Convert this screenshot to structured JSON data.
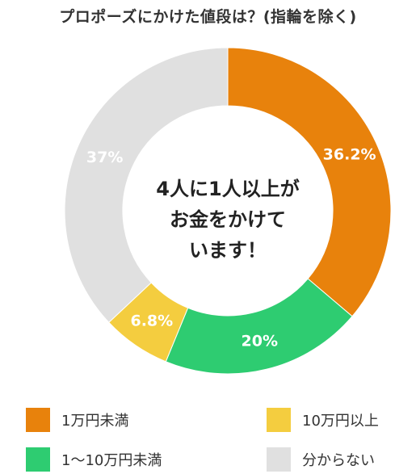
{
  "title": "プロポーズにかけた値段は？(指輪を除く)",
  "center_text": [
    "4人に1人以上が",
    "お金をかけて",
    "います！"
  ],
  "chart_data": {
    "type": "pie",
    "title": "プロポーズにかけた値段は？(指輪を除く)",
    "donut": true,
    "slices": [
      {
        "label": "1万円未満",
        "value": 36.2,
        "display": "36.2%",
        "color": "#e8820c"
      },
      {
        "label": "1～10万円未満",
        "value": 20,
        "display": "20%",
        "color": "#2ecc71"
      },
      {
        "label": "10万円以上",
        "value": 6.8,
        "display": "6.8%",
        "color": "#f4cd3f"
      },
      {
        "label": "分からない",
        "value": 37,
        "display": "37%",
        "color": "#e0e0e0"
      }
    ],
    "legend_position": "bottom"
  }
}
